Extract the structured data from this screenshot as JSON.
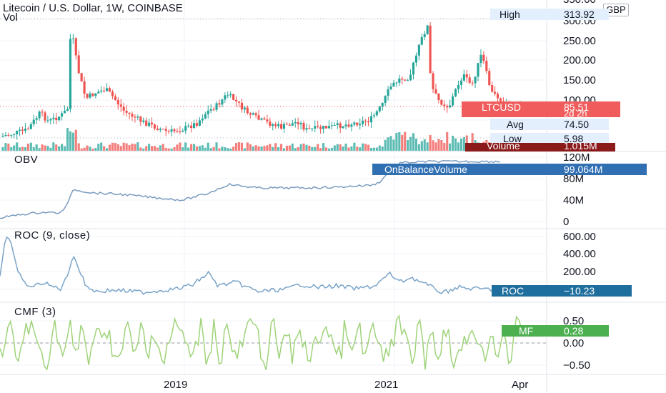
{
  "header": {
    "title": "Litecoin / U.S. Dollar, 1W, COINBASE",
    "vol_label": "Vol",
    "currency": "GBP"
  },
  "price_axis": [
    "350.00",
    "300.00",
    "250.00",
    "200.00",
    "150.00",
    "100.00"
  ],
  "price_labels": {
    "high": {
      "label": "High",
      "value": "313.92"
    },
    "symbol": {
      "label": "LTCUSD",
      "value": "85.51",
      "countdown": "2d 2h"
    },
    "avg": {
      "label": "Avg",
      "value": "74.50"
    },
    "low": {
      "label": "Low",
      "value": "5.98"
    },
    "volume": {
      "label": "Volume",
      "value": "1.015M"
    }
  },
  "obv": {
    "title": "OBV",
    "axis": [
      "120M",
      "80M",
      "40M",
      "0"
    ],
    "label": "OnBalanceVolume",
    "value": "99.064M"
  },
  "roc": {
    "title": "ROC (9, close)",
    "axis": [
      "600.00",
      "400.00",
      "200.00"
    ],
    "label": "ROC",
    "value": "−10.23"
  },
  "cmf": {
    "title": "CMF (3)",
    "axis": [
      "0.50",
      "0.00",
      "−0.50"
    ],
    "label": "MF",
    "value": "0.28"
  },
  "time_axis": [
    "2019",
    "2021",
    "Apr"
  ],
  "colors": {
    "up": "#26a69a",
    "down": "#ef5350",
    "obv_line": "#7b9cbf",
    "roc_line": "#7aa4c8",
    "cmf_line": "#9fd37a",
    "obv_badge": "#2f6fb2",
    "roc_badge": "#1f6f9e",
    "mf_badge": "#4caf50",
    "volume_badge": "#8b1a1a"
  }
}
